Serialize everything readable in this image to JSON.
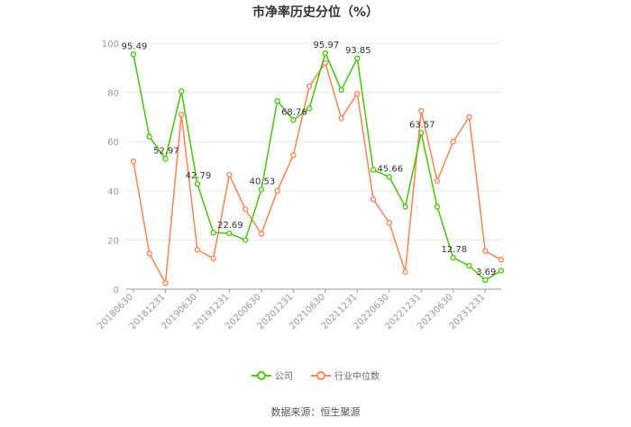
{
  "chart_data": {
    "type": "line",
    "title": "市净率历史分位（%）",
    "xlabel": "",
    "ylabel": "",
    "ylim": [
      0,
      100
    ],
    "yticks": [
      0,
      20,
      40,
      60,
      80,
      100
    ],
    "grid": true,
    "legend_position": "bottom",
    "tick_labels": [
      "20180630",
      "20181231",
      "20190630",
      "20191231",
      "20200630",
      "20201231",
      "20210630",
      "20211231",
      "20220630",
      "20221231",
      "20230630",
      "20231231"
    ],
    "x": [
      "2018Q2",
      "2018Q3",
      "2018Q4",
      "2019Q1",
      "2019Q2",
      "2019Q3",
      "2019Q4",
      "2020Q1",
      "2020Q2",
      "2020Q3",
      "2020Q4",
      "2021Q1",
      "2021Q2",
      "2021Q3",
      "2021Q4",
      "2022Q1",
      "2022Q2",
      "2022Q3",
      "2022Q4",
      "2023Q1",
      "2023Q2",
      "2023Q3",
      "2023Q4",
      "2024Q1"
    ],
    "series": [
      {
        "name": "公司",
        "color": "#52c41a",
        "values": [
          95.49,
          62.0,
          52.97,
          80.5,
          42.79,
          23.0,
          22.69,
          20.0,
          40.53,
          76.5,
          68.76,
          73.5,
          95.97,
          81.0,
          93.85,
          48.5,
          45.66,
          33.5,
          63.57,
          33.5,
          12.78,
          9.5,
          3.69,
          7.5
        ],
        "labels": {
          "0": "95.49",
          "2": "52.97",
          "4": "42.79",
          "6": "22.69",
          "8": "40.53",
          "10": "68.76",
          "12": "95.97",
          "14": "93.85",
          "16": "45.66",
          "18": "63.57",
          "20": "12.78",
          "22": "3.69"
        }
      },
      {
        "name": "行业中位数",
        "color": "#f5895b",
        "values": [
          52.0,
          14.5,
          2.5,
          71.0,
          16.0,
          12.5,
          46.5,
          32.5,
          22.5,
          40.0,
          54.5,
          82.5,
          92.0,
          69.5,
          79.5,
          36.5,
          27.0,
          7.0,
          72.5,
          44.0,
          60.0,
          70.0,
          15.5,
          12.0
        ]
      }
    ]
  },
  "source": "数据来源：恒生聚源"
}
